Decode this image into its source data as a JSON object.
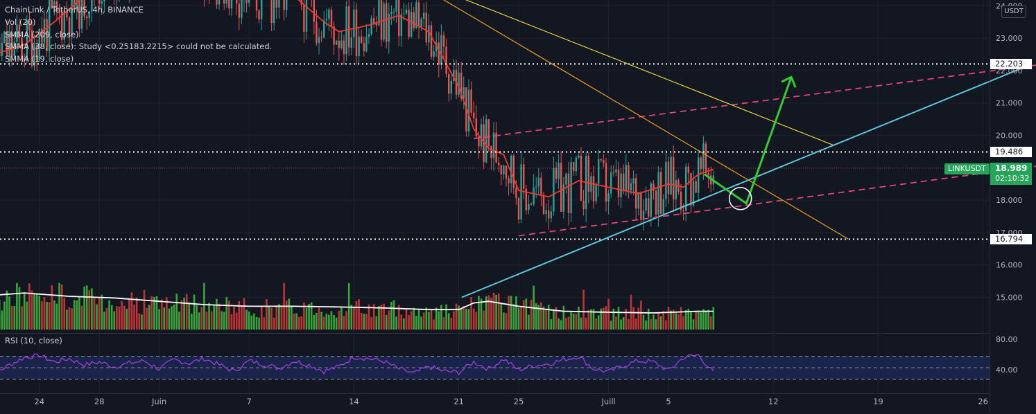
{
  "header": {
    "symbol_line": "ChainLink / TetherUS, 4h, BINANCE",
    "indicators": [
      "Vol (20)",
      "SMMA (209, close)",
      "SMMA (38, close): Study <0.25183.2215> could not be calculated.",
      "SMMA (19, close)"
    ],
    "rsi_label": "RSI (10, close)"
  },
  "price_axis": {
    "currency": "USDT",
    "ticks": [
      "24.000",
      "23.000",
      "22.000",
      "21.000",
      "20.000",
      "18.000",
      "17.000",
      "16.000",
      "15.000"
    ],
    "tick_values": [
      24,
      23,
      22,
      21,
      20,
      18,
      17,
      16,
      15
    ],
    "rsi_ticks": [
      "80.00",
      "40.00"
    ],
    "rsi_tick_values": [
      80,
      40
    ]
  },
  "time_axis": {
    "labels": [
      "24",
      "28",
      "Juin",
      "7",
      "14",
      "21",
      "25",
      "Juill",
      "5",
      "12",
      "19",
      "26"
    ],
    "label_days": [
      -7,
      -3,
      1,
      7,
      14,
      21,
      25,
      31,
      35,
      42,
      49,
      56
    ]
  },
  "levels": [
    {
      "label": "22.203",
      "value": 22.203
    },
    {
      "label": "19.486",
      "value": 19.486
    },
    {
      "label": "16.794",
      "value": 16.794
    }
  ],
  "current": {
    "symbol": "LINKUSDT",
    "price": "18.989",
    "countdown": "02:10:32",
    "value": 18.989
  },
  "colors": {
    "background": "#131722",
    "up": "#26a69a",
    "down": "#ef5350",
    "vol_up": "#3fbf3f",
    "vol_down": "#e03a3a",
    "smma": "#f23a2e",
    "trend_blue": "#5bc8dc",
    "channel_pink": "#e0457b",
    "yellow": "#e8d33a",
    "orange": "#f0a020",
    "arrow_green": "#33cc33",
    "rsi": "#9c3fd8",
    "rsi_band": "#1e2a5a",
    "accent_green": "#26a65b"
  },
  "chart_data": {
    "type": "line",
    "title": "ChainLink / TetherUS, 4h, BINANCE",
    "x_unit": "day (0 = 31 May, label 'Juin' = day 1, 'Juill' = day 31)",
    "price_range": [
      14.4,
      24.1
    ],
    "smma_19": {
      "x": [
        -10,
        -8,
        -6,
        -4,
        -2,
        0,
        2,
        4,
        6,
        8,
        10,
        12,
        13,
        15,
        17,
        19,
        21,
        22,
        23,
        24,
        25,
        27,
        29,
        31,
        33,
        35,
        36,
        37,
        38
      ],
      "y": [
        22.5,
        22.8,
        23.5,
        24.3,
        25.0,
        25.5,
        25.6,
        25.2,
        24.5,
        24.2,
        24.3,
        23.5,
        23.2,
        23.4,
        23.7,
        23.2,
        21.5,
        20.2,
        19.6,
        19.4,
        18.3,
        18.1,
        18.6,
        18.4,
        18.2,
        18.5,
        18.4,
        18.8,
        18.95
      ]
    },
    "volume_avg": {
      "x": [
        -11,
        -8,
        -5,
        -2,
        1,
        4,
        7,
        10,
        13,
        16,
        19,
        21,
        22,
        23,
        25,
        28,
        31,
        34,
        37,
        38
      ],
      "y": [
        1.0,
        1.1,
        1.0,
        0.95,
        0.85,
        0.75,
        0.7,
        0.7,
        0.68,
        0.65,
        0.6,
        0.6,
        0.8,
        0.85,
        0.7,
        0.55,
        0.52,
        0.5,
        0.55,
        0.55
      ],
      "unit": "relative (max volume bar = 1.4)"
    },
    "rsi_10": {
      "x": [
        -11,
        -10,
        -9,
        -8,
        -7,
        -6,
        -5,
        -4,
        -3,
        -2,
        -1,
        0,
        1,
        2,
        3,
        4,
        5,
        6,
        7,
        8,
        9,
        10,
        11,
        12,
        13,
        14,
        15,
        16,
        17,
        18,
        19,
        20,
        21,
        22,
        23,
        24,
        25,
        26,
        27,
        28,
        29,
        30,
        31,
        32,
        33,
        34,
        35,
        36,
        37,
        38
      ],
      "y": [
        45,
        40,
        55,
        68,
        72,
        60,
        66,
        55,
        60,
        52,
        58,
        62,
        48,
        64,
        58,
        66,
        55,
        44,
        62,
        56,
        49,
        62,
        55,
        44,
        52,
        69,
        66,
        61,
        48,
        40,
        52,
        44,
        42,
        60,
        48,
        65,
        46,
        54,
        57,
        64,
        70,
        48,
        43,
        54,
        62,
        60,
        45,
        68,
        72,
        42
      ],
      "ylim": [
        25,
        90
      ],
      "bands": [
        70,
        50,
        30
      ]
    },
    "drawings": [
      {
        "name": "blue-trendline",
        "x": [
          21.2,
          59
        ],
        "y": [
          15.0,
          22.15
        ]
      },
      {
        "name": "channel-upper",
        "x": [
          22,
          70
        ],
        "y": [
          19.9,
          22.8
        ]
      },
      {
        "name": "channel-lower",
        "x": [
          25,
          70
        ],
        "y": [
          16.9,
          19.7
        ]
      },
      {
        "name": "yellow-line",
        "x": [
          17,
          46
        ],
        "y": [
          25.0,
          19.7
        ]
      },
      {
        "name": "orange-line",
        "x": [
          17,
          47
        ],
        "y": [
          25.0,
          16.8
        ]
      }
    ],
    "projection_arrow": {
      "x": [
        37.4,
        40.2,
        43.2
      ],
      "y": [
        18.8,
        17.9,
        21.8
      ]
    },
    "highlight_circle": {
      "x": 39.8,
      "y": 18.05
    }
  }
}
